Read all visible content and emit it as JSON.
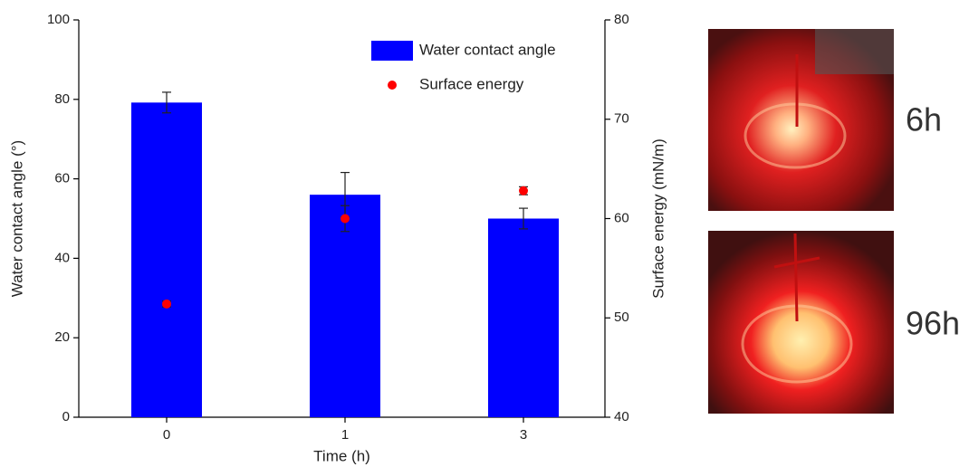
{
  "chart_data": {
    "type": "bar",
    "xlabel": "Time (h)",
    "ylabel": "Water contact angle (°)",
    "y2label": "Surface energy (mN/m)",
    "categories": [
      "0",
      "1",
      "3"
    ],
    "series": [
      {
        "name": "Water contact angle",
        "type": "bar",
        "color": "#0000ff",
        "values": [
          79.2,
          56,
          50
        ],
        "errors": [
          2.6,
          5.6,
          2.6
        ]
      },
      {
        "name": "Surface energy",
        "type": "scatter",
        "axis": "y2",
        "color": "#ff0000",
        "values": [
          51.4,
          60,
          62.8
        ],
        "errors": [
          0.3,
          1.3,
          0.4
        ]
      }
    ],
    "ylim": [
      0,
      100
    ],
    "yticks": [
      0,
      20,
      40,
      60,
      80,
      100
    ],
    "y2lim": [
      40,
      80
    ],
    "y2ticks": [
      40,
      50,
      60,
      70,
      80
    ],
    "legend": "upper right"
  },
  "panels": [
    {
      "label": "6h"
    },
    {
      "label": "96h"
    }
  ]
}
